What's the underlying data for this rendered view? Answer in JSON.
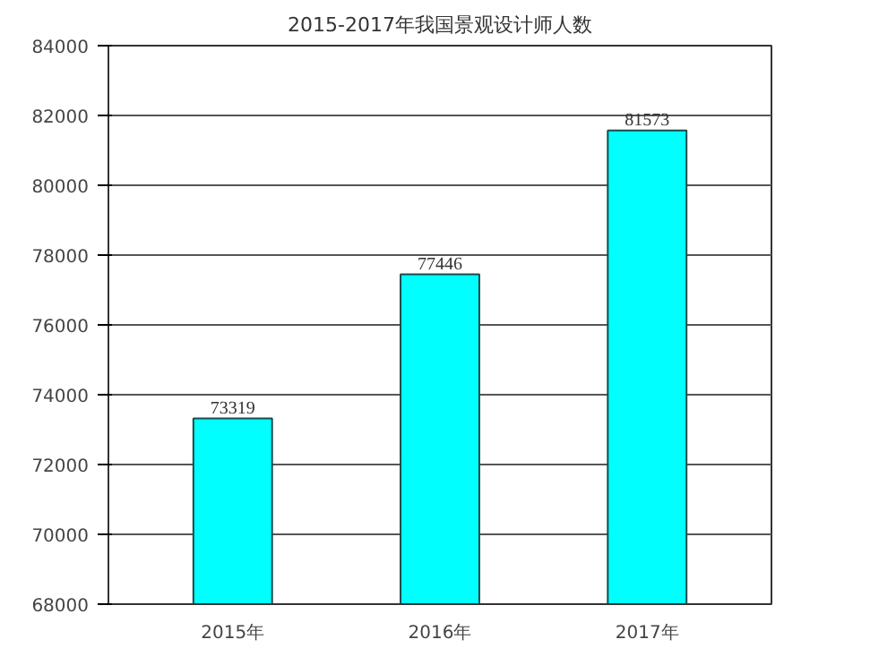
{
  "chart_data": {
    "type": "bar",
    "title": "2015-2017年我国景观设计师人数",
    "categories": [
      "2015年",
      "2016年",
      "2017年"
    ],
    "values": [
      73319,
      77446,
      81573
    ],
    "color": "#00ffff",
    "ylim": [
      68000,
      84000
    ],
    "yticks": [
      68000,
      70000,
      72000,
      74000,
      76000,
      78000,
      80000,
      82000,
      84000
    ],
    "grid": "y",
    "data_labels": true
  }
}
